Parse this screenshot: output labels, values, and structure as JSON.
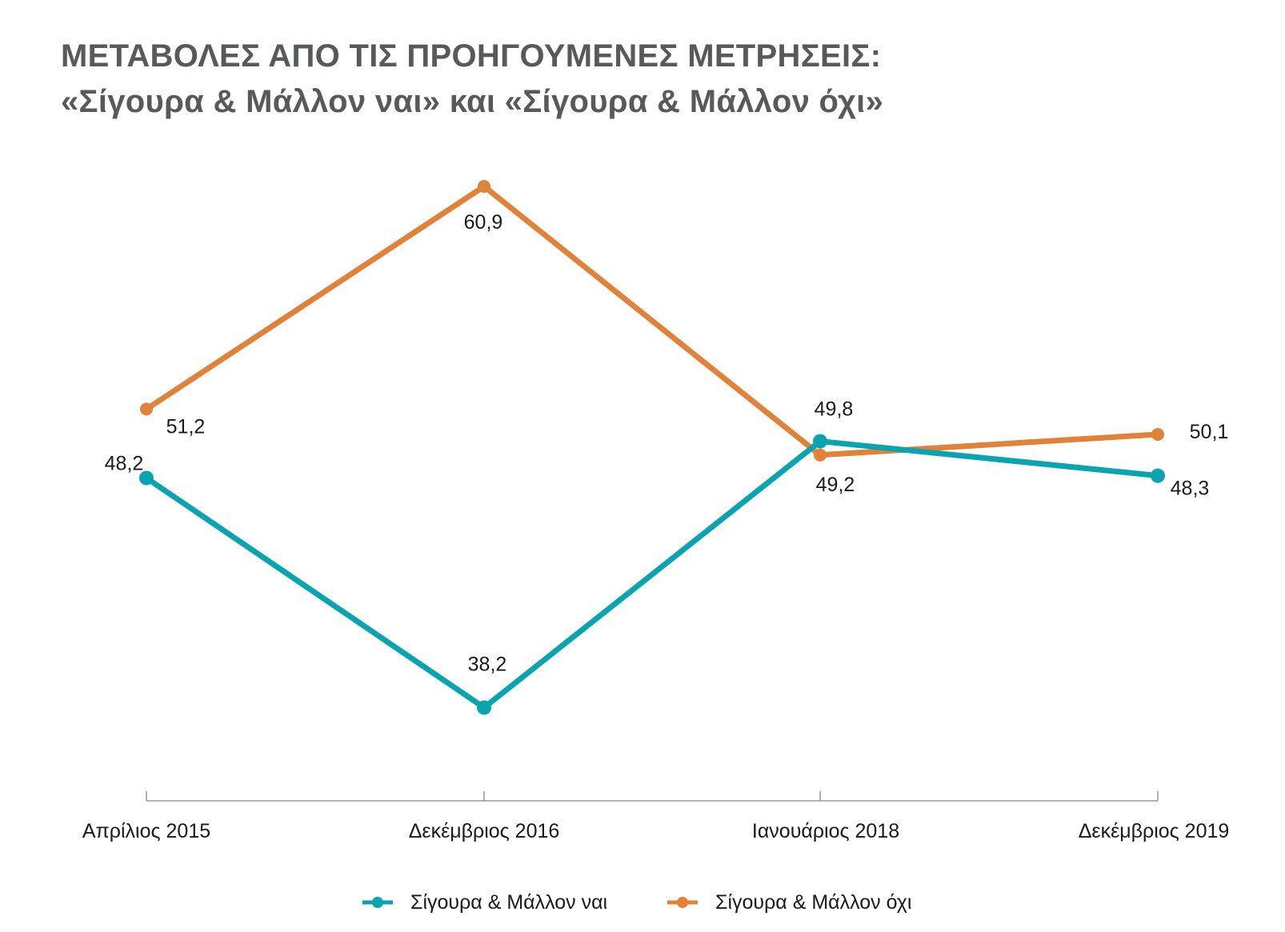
{
  "title": {
    "line1": "ΜΕΤΑΒΟΛΕΣ ΑΠΟ ΤΙΣ ΠΡΟΗΓΟΥΜΕΝΕΣ ΜΕΤΡΗΣΕΙΣ:",
    "line2": "«Σίγουρα & Μάλλον ναι» και «Σίγουρα & Μάλλον όχι»"
  },
  "colors": {
    "title": "#58595b",
    "axis": "#999999"
  },
  "chart_data": {
    "type": "line",
    "categories": [
      "Απρίλιος 2015",
      "Δεκέμβριος 2016",
      "Ιανουάριος 2018",
      "Δεκέμβριος 2019"
    ],
    "series": [
      {
        "name": "Σίγουρα & Μάλλον ναι",
        "values": [
          48.2,
          38.2,
          49.8,
          48.3
        ],
        "labels": [
          "48,2",
          "38,2",
          "49,8",
          "48,3"
        ],
        "color": "#0aa4b0"
      },
      {
        "name": "Σίγουρα & Μάλλον  όχι",
        "values": [
          51.2,
          60.9,
          49.2,
          50.1
        ],
        "labels": [
          "51,2",
          "60,9",
          "49,2",
          "50,1"
        ],
        "color": "#e0823a"
      }
    ],
    "grid": false,
    "legend": "bottom-center"
  }
}
